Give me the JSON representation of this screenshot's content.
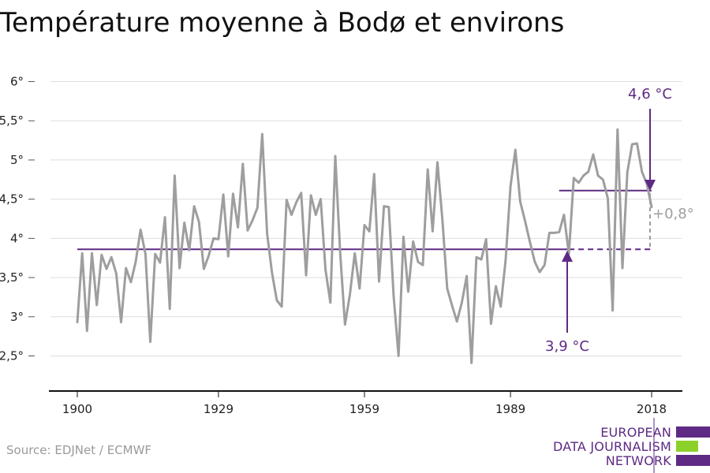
{
  "chart_data": {
    "type": "line",
    "title": "Température moyenne à Bodø et environs",
    "xlabel": "",
    "ylabel": "",
    "xlim": [
      1900,
      2018
    ],
    "ylim": [
      2.2,
      6.0
    ],
    "x_ticks": [
      {
        "value": 1900,
        "label": "1900"
      },
      {
        "value": 1929,
        "label": "1929"
      },
      {
        "value": 1959,
        "label": "1959"
      },
      {
        "value": 1989,
        "label": "1989"
      },
      {
        "value": 2018,
        "label": "2018"
      }
    ],
    "y_ticks": [
      {
        "value": 2.5,
        "label": "2,5°"
      },
      {
        "value": 3,
        "label": "3°"
      },
      {
        "value": 3.5,
        "label": "3,5°"
      },
      {
        "value": 4,
        "label": "4°"
      },
      {
        "value": 4.5,
        "label": "4,5°"
      },
      {
        "value": 5,
        "label": "5°"
      },
      {
        "value": 5.5,
        "label": "5,5°"
      },
      {
        "value": 6,
        "label": "6°"
      }
    ],
    "grid": true,
    "legend": "none",
    "series": [
      {
        "values": [
          [
            1900,
            2.93
          ],
          [
            1901,
            3.81
          ],
          [
            1902,
            2.82
          ],
          [
            1903,
            3.81
          ],
          [
            1904,
            3.15
          ],
          [
            1905,
            3.79
          ],
          [
            1906,
            3.61
          ],
          [
            1907,
            3.76
          ],
          [
            1908,
            3.55
          ],
          [
            1909,
            2.93
          ],
          [
            1910,
            3.62
          ],
          [
            1911,
            3.44
          ],
          [
            1912,
            3.7
          ],
          [
            1913,
            4.11
          ],
          [
            1914,
            3.8
          ],
          [
            1915,
            2.68
          ],
          [
            1916,
            3.8
          ],
          [
            1917,
            3.69
          ],
          [
            1918,
            4.27
          ],
          [
            1919,
            3.1
          ],
          [
            1920,
            4.8
          ],
          [
            1921,
            3.62
          ],
          [
            1922,
            4.2
          ],
          [
            1923,
            3.85
          ],
          [
            1924,
            4.41
          ],
          [
            1925,
            4.21
          ],
          [
            1926,
            3.61
          ],
          [
            1927,
            3.78
          ],
          [
            1928,
            4.0
          ],
          [
            1929,
            3.99
          ],
          [
            1930,
            4.56
          ],
          [
            1931,
            3.77
          ],
          [
            1932,
            4.57
          ],
          [
            1933,
            4.14
          ],
          [
            1934,
            4.95
          ],
          [
            1935,
            4.1
          ],
          [
            1936,
            4.23
          ],
          [
            1937,
            4.39
          ],
          [
            1938,
            5.33
          ],
          [
            1939,
            4.06
          ],
          [
            1940,
            3.56
          ],
          [
            1941,
            3.21
          ],
          [
            1942,
            3.13
          ],
          [
            1943,
            4.49
          ],
          [
            1944,
            4.3
          ],
          [
            1945,
            4.46
          ],
          [
            1946,
            4.58
          ],
          [
            1947,
            3.53
          ],
          [
            1948,
            4.55
          ],
          [
            1949,
            4.3
          ],
          [
            1950,
            4.5
          ],
          [
            1951,
            3.6
          ],
          [
            1952,
            3.18
          ],
          [
            1953,
            5.05
          ],
          [
            1954,
            3.82
          ],
          [
            1955,
            2.9
          ],
          [
            1956,
            3.28
          ],
          [
            1957,
            3.81
          ],
          [
            1958,
            3.36
          ],
          [
            1959,
            4.17
          ],
          [
            1960,
            4.09
          ],
          [
            1961,
            4.82
          ],
          [
            1962,
            3.45
          ],
          [
            1963,
            4.41
          ],
          [
            1964,
            4.4
          ],
          [
            1965,
            3.26
          ],
          [
            1966,
            2.5
          ],
          [
            1967,
            4.02
          ],
          [
            1968,
            3.32
          ],
          [
            1969,
            3.96
          ],
          [
            1970,
            3.7
          ],
          [
            1971,
            3.66
          ],
          [
            1972,
            4.88
          ],
          [
            1973,
            4.09
          ],
          [
            1974,
            4.97
          ],
          [
            1975,
            4.25
          ],
          [
            1976,
            3.36
          ],
          [
            1977,
            3.14
          ],
          [
            1978,
            2.94
          ],
          [
            1979,
            3.18
          ],
          [
            1980,
            3.52
          ],
          [
            1981,
            2.41
          ],
          [
            1982,
            3.76
          ],
          [
            1983,
            3.73
          ],
          [
            1984,
            3.99
          ],
          [
            1985,
            2.91
          ],
          [
            1986,
            3.39
          ],
          [
            1987,
            3.13
          ],
          [
            1988,
            3.72
          ],
          [
            1989,
            4.66
          ],
          [
            1990,
            5.13
          ],
          [
            1991,
            4.47
          ],
          [
            1992,
            4.22
          ],
          [
            1993,
            3.95
          ],
          [
            1994,
            3.7
          ],
          [
            1995,
            3.57
          ],
          [
            1996,
            3.66
          ],
          [
            1997,
            4.07
          ],
          [
            1998,
            4.07
          ],
          [
            1999,
            4.08
          ],
          [
            2000,
            4.3
          ],
          [
            2001,
            3.8
          ],
          [
            2002,
            4.77
          ],
          [
            2003,
            4.71
          ],
          [
            2004,
            4.8
          ],
          [
            2005,
            4.85
          ],
          [
            2006,
            5.07
          ],
          [
            2007,
            4.8
          ],
          [
            2008,
            4.75
          ],
          [
            2009,
            4.51
          ],
          [
            2010,
            3.08
          ],
          [
            2011,
            5.39
          ],
          [
            2012,
            3.62
          ],
          [
            2013,
            4.84
          ],
          [
            2014,
            5.2
          ],
          [
            2015,
            5.21
          ],
          [
            2016,
            4.85
          ],
          [
            2017,
            4.7
          ],
          [
            2018,
            4.4
          ]
        ]
      }
    ],
    "reference_lines": [
      {
        "value": 3.86,
        "x_start": 1900,
        "x_end": 2001,
        "solid": true
      },
      {
        "value": 3.86,
        "x_start": 2001,
        "x_end": 2018,
        "solid": false
      },
      {
        "value": 4.61,
        "x_start": 1999,
        "x_end": 2018,
        "solid": true
      }
    ],
    "annotations": [
      {
        "text": "4,6 °C",
        "color": "#5e2a84"
      },
      {
        "text": "3,9 °C",
        "color": "#5e2a84"
      },
      {
        "text": "+0,8°",
        "color": "#9e9e9e"
      }
    ],
    "colors": {
      "line": "#9e9e9e",
      "reference": "#5e2a84",
      "grid": "#dddddd",
      "axis": "#111111"
    }
  },
  "footer": {
    "source": "Source: EDJNet / ECMWF",
    "logo_lines": [
      "EUROPEAN",
      "DATA JOURNALISM",
      "NETWORK"
    ],
    "logo_colors": [
      "#5e2a84",
      "#8cd12a",
      "#5e2a84"
    ]
  }
}
